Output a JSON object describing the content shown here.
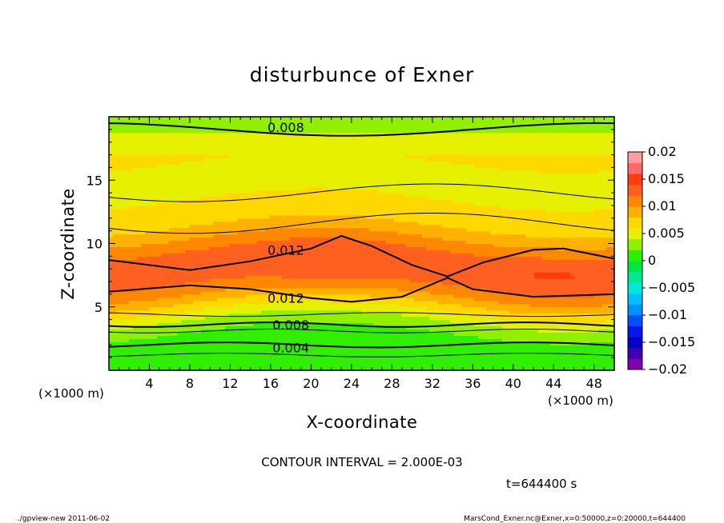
{
  "chart_data": {
    "type": "heatmap",
    "title": "disturbunce of Exner",
    "xlabel": "X-coordinate",
    "ylabel": "Z-coordinate",
    "x_unit_left": "(×1000 m)",
    "x_unit_right": "(×1000 m)",
    "xlim": [
      0,
      50
    ],
    "ylim": [
      0,
      20
    ],
    "x_ticks": [
      "4",
      "8",
      "12",
      "16",
      "20",
      "24",
      "28",
      "32",
      "36",
      "40",
      "44",
      "48"
    ],
    "x_tick_values": [
      4,
      8,
      12,
      16,
      20,
      24,
      28,
      32,
      36,
      40,
      44,
      48
    ],
    "y_ticks": [
      "5",
      "10",
      "15"
    ],
    "y_tick_values": [
      5,
      10,
      15
    ],
    "contour_interval": "CONTOUR INTERVAL = 2.000E-03",
    "time_label": "t=644400 s",
    "contour_labels": [
      {
        "text": "0.008",
        "x": 17.5,
        "z": 19.1
      },
      {
        "text": "0.012",
        "x": 17.5,
        "z": 9.4
      },
      {
        "text": "0.012",
        "x": 17.5,
        "z": 5.6
      },
      {
        "text": "0.008",
        "x": 18.0,
        "z": 3.5
      },
      {
        "text": "0.004",
        "x": 18.0,
        "z": 1.7
      }
    ],
    "colorbar": {
      "ticks": [
        "0.02",
        "0.015",
        "0.01",
        "0.005",
        "0",
        "−0.005",
        "−0.01",
        "−0.015",
        "−0.02"
      ],
      "tick_values": [
        0.02,
        0.015,
        0.01,
        0.005,
        0,
        -0.005,
        -0.01,
        -0.015,
        -0.02
      ],
      "range": [
        -0.02,
        0.02
      ],
      "colors_bottom_to_top": [
        "#8000b0",
        "#4000b0",
        "#0000c8",
        "#0018e8",
        "#0050ff",
        "#0090ff",
        "#00c0ff",
        "#00e8e0",
        "#00e890",
        "#00e840",
        "#30ef00",
        "#90f000",
        "#e6f000",
        "#ffd800",
        "#ffb000",
        "#ff8800",
        "#ff6020",
        "#ff3c10",
        "#ff6a6a",
        "#ff9f9f"
      ]
    },
    "field_description_levels": [
      {
        "value": 0.0,
        "color": "#30ef00"
      },
      {
        "value": 0.002,
        "color": "#90f000"
      },
      {
        "value": 0.004,
        "color": "#e6f000"
      },
      {
        "value": 0.006,
        "color": "#ffd800"
      },
      {
        "value": 0.008,
        "color": "#ffb000"
      },
      {
        "value": 0.01,
        "color": "#ff8800"
      },
      {
        "value": 0.012,
        "color": "#ff6020"
      },
      {
        "value": 0.014,
        "color": "#ff3c10"
      }
    ]
  },
  "footer": {
    "left": "./gpview-new   2011-06-02",
    "right": "MarsCond_Exner.nc@Exner,x=0:50000,z=0:20000,t=644400"
  }
}
